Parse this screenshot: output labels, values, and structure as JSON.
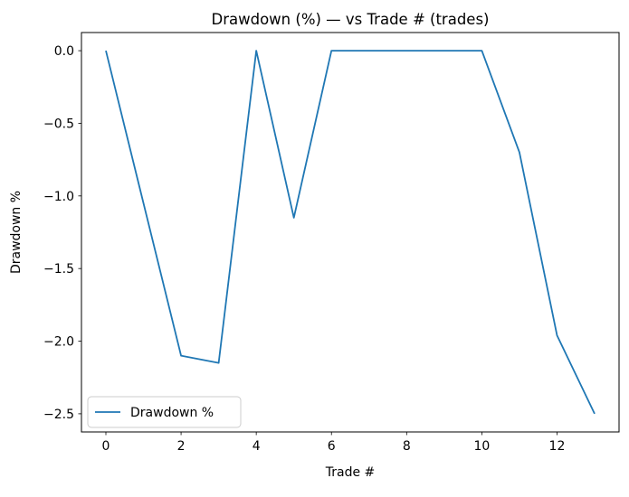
{
  "figure": {
    "background": "#ffffff",
    "axis_color": "#000000"
  },
  "chart_data": {
    "type": "line",
    "title": "Drawdown (%) — vs Trade # (trades)",
    "xlabel": "Trade #",
    "ylabel": "Drawdown %",
    "x": [
      0,
      1,
      2,
      3,
      4,
      5,
      6,
      7,
      8,
      9,
      10,
      11,
      12,
      13
    ],
    "series": [
      {
        "name": "Drawdown %",
        "color": "#1f77b4",
        "values": [
          0.0,
          -1.05,
          -2.1,
          -2.15,
          0.0,
          -1.15,
          0.0,
          0.0,
          0.0,
          0.0,
          0.0,
          -0.7,
          -1.96,
          -2.5
        ]
      }
    ],
    "xlim": [
      -0.65,
      13.65
    ],
    "ylim": [
      -2.625,
      0.125
    ],
    "x_ticks": [
      0,
      2,
      4,
      6,
      8,
      10,
      12
    ],
    "y_ticks": [
      0.0,
      -0.5,
      -1.0,
      -1.5,
      -2.0,
      -2.5
    ],
    "x_tick_labels": [
      "0",
      "2",
      "4",
      "6",
      "8",
      "10",
      "12"
    ],
    "y_tick_labels": [
      "0.0",
      "−0.5",
      "−1.0",
      "−1.5",
      "−2.0",
      "−2.5"
    ],
    "grid": false,
    "legend": {
      "position": "lower left",
      "entries": [
        "Drawdown %"
      ],
      "edge_color": "#cccccc",
      "face_color": "#ffffff"
    }
  }
}
